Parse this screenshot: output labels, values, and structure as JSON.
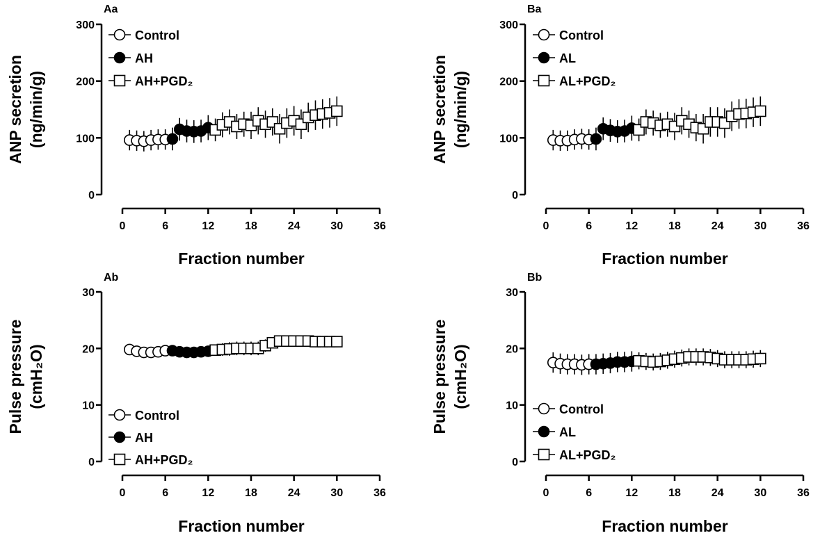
{
  "chart_data": [
    {
      "panel_label": "Aa",
      "type": "scatter",
      "title": "",
      "xlabel": "Fraction number",
      "ylabel": [
        "ANP secretion",
        "(ng/min/g)"
      ],
      "xlim": [
        0,
        36
      ],
      "ylim": [
        0,
        300
      ],
      "xticks": [
        0,
        6,
        12,
        18,
        24,
        30,
        36
      ],
      "yticks": [
        0,
        100,
        200,
        300
      ],
      "legend_position": "top-left",
      "series": [
        {
          "name": "Control",
          "marker": "open-circle",
          "x": [
            1,
            2,
            3,
            4,
            5,
            6
          ],
          "y": [
            96,
            95,
            94,
            96,
            97,
            97
          ],
          "err": [
            18,
            18,
            18,
            18,
            18,
            18
          ]
        },
        {
          "name": "AH",
          "marker": "filled-circle",
          "x": [
            7,
            8,
            9,
            10,
            11,
            12
          ],
          "y": [
            98,
            115,
            112,
            111,
            112,
            118
          ],
          "err": [
            20,
            20,
            20,
            20,
            20,
            22
          ]
        },
        {
          "name": "AH+PGD₂",
          "marker": "open-square",
          "x": [
            13,
            14,
            15,
            16,
            17,
            18,
            19,
            20,
            21,
            22,
            23,
            24,
            25,
            26,
            27,
            28,
            29,
            30
          ],
          "y": [
            114,
            123,
            128,
            120,
            124,
            122,
            130,
            124,
            128,
            116,
            126,
            130,
            124,
            136,
            140,
            142,
            144,
            147
          ],
          "err": [
            20,
            22,
            22,
            22,
            22,
            24,
            24,
            24,
            24,
            26,
            26,
            26,
            26,
            26,
            26,
            26,
            26,
            26
          ]
        }
      ]
    },
    {
      "panel_label": "Ba",
      "type": "scatter",
      "title": "",
      "xlabel": "Fraction number",
      "ylabel": [
        "ANP secretion",
        "(ng/min/g)"
      ],
      "xlim": [
        0,
        36
      ],
      "ylim": [
        0,
        300
      ],
      "xticks": [
        0,
        6,
        12,
        18,
        24,
        30,
        36
      ],
      "yticks": [
        0,
        100,
        200,
        300
      ],
      "legend_position": "top-left",
      "series": [
        {
          "name": "Control",
          "marker": "open-circle",
          "x": [
            1,
            2,
            3,
            4,
            5,
            6
          ],
          "y": [
            96,
            95,
            95,
            97,
            98,
            97
          ],
          "err": [
            18,
            18,
            18,
            18,
            18,
            18
          ]
        },
        {
          "name": "AL",
          "marker": "filled-circle",
          "x": [
            7,
            8,
            9,
            10,
            11,
            12
          ],
          "y": [
            98,
            116,
            113,
            111,
            112,
            117
          ],
          "err": [
            20,
            20,
            20,
            20,
            20,
            22
          ]
        },
        {
          "name": "AL+PGD₂",
          "marker": "open-square",
          "x": [
            13,
            14,
            15,
            16,
            17,
            18,
            19,
            20,
            21,
            22,
            23,
            24,
            25,
            26,
            27,
            28,
            29,
            30
          ],
          "y": [
            114,
            128,
            126,
            122,
            124,
            120,
            130,
            124,
            118,
            116,
            128,
            128,
            126,
            138,
            142,
            143,
            145,
            147
          ],
          "err": [
            20,
            22,
            22,
            22,
            22,
            24,
            24,
            24,
            24,
            26,
            26,
            26,
            26,
            26,
            26,
            26,
            26,
            26
          ]
        }
      ]
    },
    {
      "panel_label": "Ab",
      "type": "scatter",
      "title": "",
      "xlabel": "Fraction number",
      "ylabel": [
        "Pulse pressure",
        "(cmH₂O)"
      ],
      "xlim": [
        0,
        36
      ],
      "ylim": [
        0,
        30
      ],
      "xticks": [
        0,
        6,
        12,
        18,
        24,
        30,
        36
      ],
      "yticks": [
        0,
        10,
        20,
        30
      ],
      "legend_position": "bottom-left",
      "series": [
        {
          "name": "Control",
          "marker": "open-circle",
          "x": [
            1,
            2,
            3,
            4,
            5,
            6
          ],
          "y": [
            19.8,
            19.5,
            19.3,
            19.3,
            19.4,
            19.6
          ],
          "err": [
            0.7,
            0.8,
            0.8,
            0.8,
            0.8,
            0.8
          ]
        },
        {
          "name": "AH",
          "marker": "filled-circle",
          "x": [
            7,
            8,
            9,
            10,
            11,
            12
          ],
          "y": [
            19.6,
            19.4,
            19.3,
            19.3,
            19.4,
            19.5
          ],
          "err": [
            0.8,
            0.8,
            0.8,
            0.8,
            0.8,
            0.8
          ]
        },
        {
          "name": "AH+PGD₂",
          "marker": "open-square",
          "x": [
            13,
            14,
            15,
            16,
            17,
            18,
            19,
            20,
            21,
            22,
            23,
            24,
            25,
            26,
            27,
            28,
            29,
            30
          ],
          "y": [
            19.7,
            19.8,
            19.9,
            20.0,
            20.0,
            20.0,
            20.0,
            20.5,
            21.0,
            21.3,
            21.3,
            21.3,
            21.3,
            21.3,
            21.2,
            21.2,
            21.2,
            21.2
          ],
          "err": [
            1.0,
            1.1,
            1.2,
            1.2,
            1.2,
            1.2,
            1.2,
            1.1,
            1.0,
            1.0,
            1.0,
            1.0,
            1.0,
            1.0,
            1.0,
            1.0,
            1.0,
            1.0
          ]
        }
      ]
    },
    {
      "panel_label": "Bb",
      "type": "scatter",
      "title": "",
      "xlabel": "Fraction number",
      "ylabel": [
        "Pulse pressure",
        "(cmH₂O)"
      ],
      "xlim": [
        0,
        36
      ],
      "ylim": [
        0,
        30
      ],
      "xticks": [
        0,
        6,
        12,
        18,
        24,
        30,
        36
      ],
      "yticks": [
        0,
        10,
        20,
        30
      ],
      "legend_position": "bottom-left",
      "series": [
        {
          "name": "Control",
          "marker": "open-circle",
          "x": [
            1,
            2,
            3,
            4,
            5,
            6
          ],
          "y": [
            17.5,
            17.3,
            17.2,
            17.2,
            17.1,
            17.2
          ],
          "err": [
            1.8,
            1.8,
            1.8,
            1.8,
            1.8,
            1.8
          ]
        },
        {
          "name": "AL",
          "marker": "filled-circle",
          "x": [
            7,
            8,
            9,
            10,
            11,
            12
          ],
          "y": [
            17.2,
            17.3,
            17.4,
            17.6,
            17.6,
            17.7
          ],
          "err": [
            1.8,
            1.8,
            1.8,
            1.8,
            1.8,
            1.8
          ]
        },
        {
          "name": "AL+PGD₂",
          "marker": "open-square",
          "x": [
            13,
            14,
            15,
            16,
            17,
            18,
            19,
            20,
            21,
            22,
            23,
            24,
            25,
            26,
            27,
            28,
            29,
            30
          ],
          "y": [
            17.8,
            17.7,
            17.6,
            17.7,
            17.9,
            18.1,
            18.3,
            18.5,
            18.5,
            18.5,
            18.4,
            18.2,
            18.0,
            18.0,
            18.0,
            18.0,
            18.1,
            18.2
          ],
          "err": [
            1.5,
            1.5,
            1.5,
            1.5,
            1.5,
            1.5,
            1.5,
            1.5,
            1.5,
            1.5,
            1.5,
            1.5,
            1.5,
            1.5,
            1.5,
            1.5,
            1.5,
            1.5
          ]
        }
      ]
    }
  ]
}
